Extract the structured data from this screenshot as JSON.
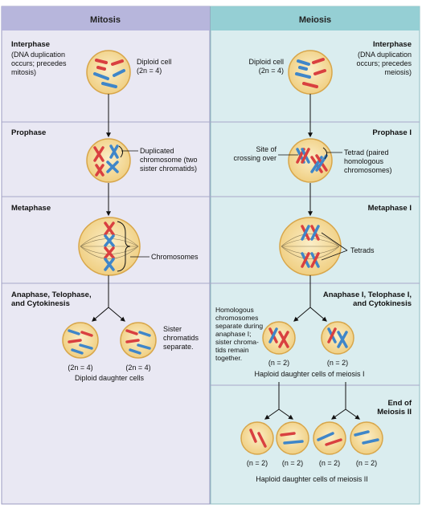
{
  "columns": {
    "left": {
      "title": "Mitosis"
    },
    "right": {
      "title": "Meiosis"
    }
  },
  "mitosis": {
    "interphase": {
      "title": "Interphase",
      "lines": [
        "(DNA duplication",
        "occurs; precedes",
        "mitosis)"
      ]
    },
    "diploid_cell": [
      "Diploid cell",
      "(2n = 4)"
    ],
    "prophase": {
      "title": "Prophase"
    },
    "duplicated": [
      "Duplicated",
      "chromosome (two",
      "sister chromatids)"
    ],
    "metaphase": {
      "title": "Metaphase"
    },
    "chromosomes": "Chromosomes",
    "anaphase": {
      "lines": [
        "Anaphase, Telophase,",
        "and Cytokinesis"
      ]
    },
    "sister": [
      "Sister",
      "chromatids",
      "separate."
    ],
    "ploidy_left": "(2n = 4)",
    "ploidy_right": "(2n = 4)",
    "caption": "Diploid daughter cells"
  },
  "meiosis": {
    "interphase": {
      "title": "Interphase",
      "lines": [
        "(DNA duplication",
        "occurs; precedes",
        "meiosis)"
      ]
    },
    "diploid_cell": [
      "Diploid cell",
      "(2n = 4)"
    ],
    "prophase": {
      "title": "Prophase I"
    },
    "crossing": [
      "Site of",
      "crossing over"
    ],
    "tetrad": [
      "Tetrad (paired",
      "homologous",
      "chromosomes)"
    ],
    "metaphase": {
      "title": "Metaphase I"
    },
    "tetrads": "Tetrads",
    "anaphase": {
      "lines": [
        "Anaphase I, Telophase I,",
        "and Cytokinesis"
      ]
    },
    "homologous": [
      "Homologous",
      "chromosomes",
      "separate during",
      "anaphase I;",
      "sister chroma-",
      "tids remain",
      "together."
    ],
    "ploidy_1": "(n = 2)",
    "ploidy_2": "(n = 2)",
    "caption_1": "Haploid daughter cells of meiosis I",
    "end": {
      "lines": [
        "End of",
        "Meiosis II"
      ]
    },
    "ploidy_a": "(n = 2)",
    "ploidy_b": "(n = 2)",
    "ploidy_c": "(n = 2)",
    "ploidy_d": "(n = 2)",
    "caption_2": "Haploid daughter cells of meiosis II"
  },
  "colors": {
    "left_bg": "#e9e8f3",
    "right_bg": "#daedef",
    "left_header": "#b7b6dc",
    "right_header": "#95cfd4",
    "cell_fill": "#f6dfa7",
    "cell_edge": "#d8a64a",
    "red": "#d94040",
    "blue": "#3f86c9",
    "divider": "#a8a8c8"
  }
}
